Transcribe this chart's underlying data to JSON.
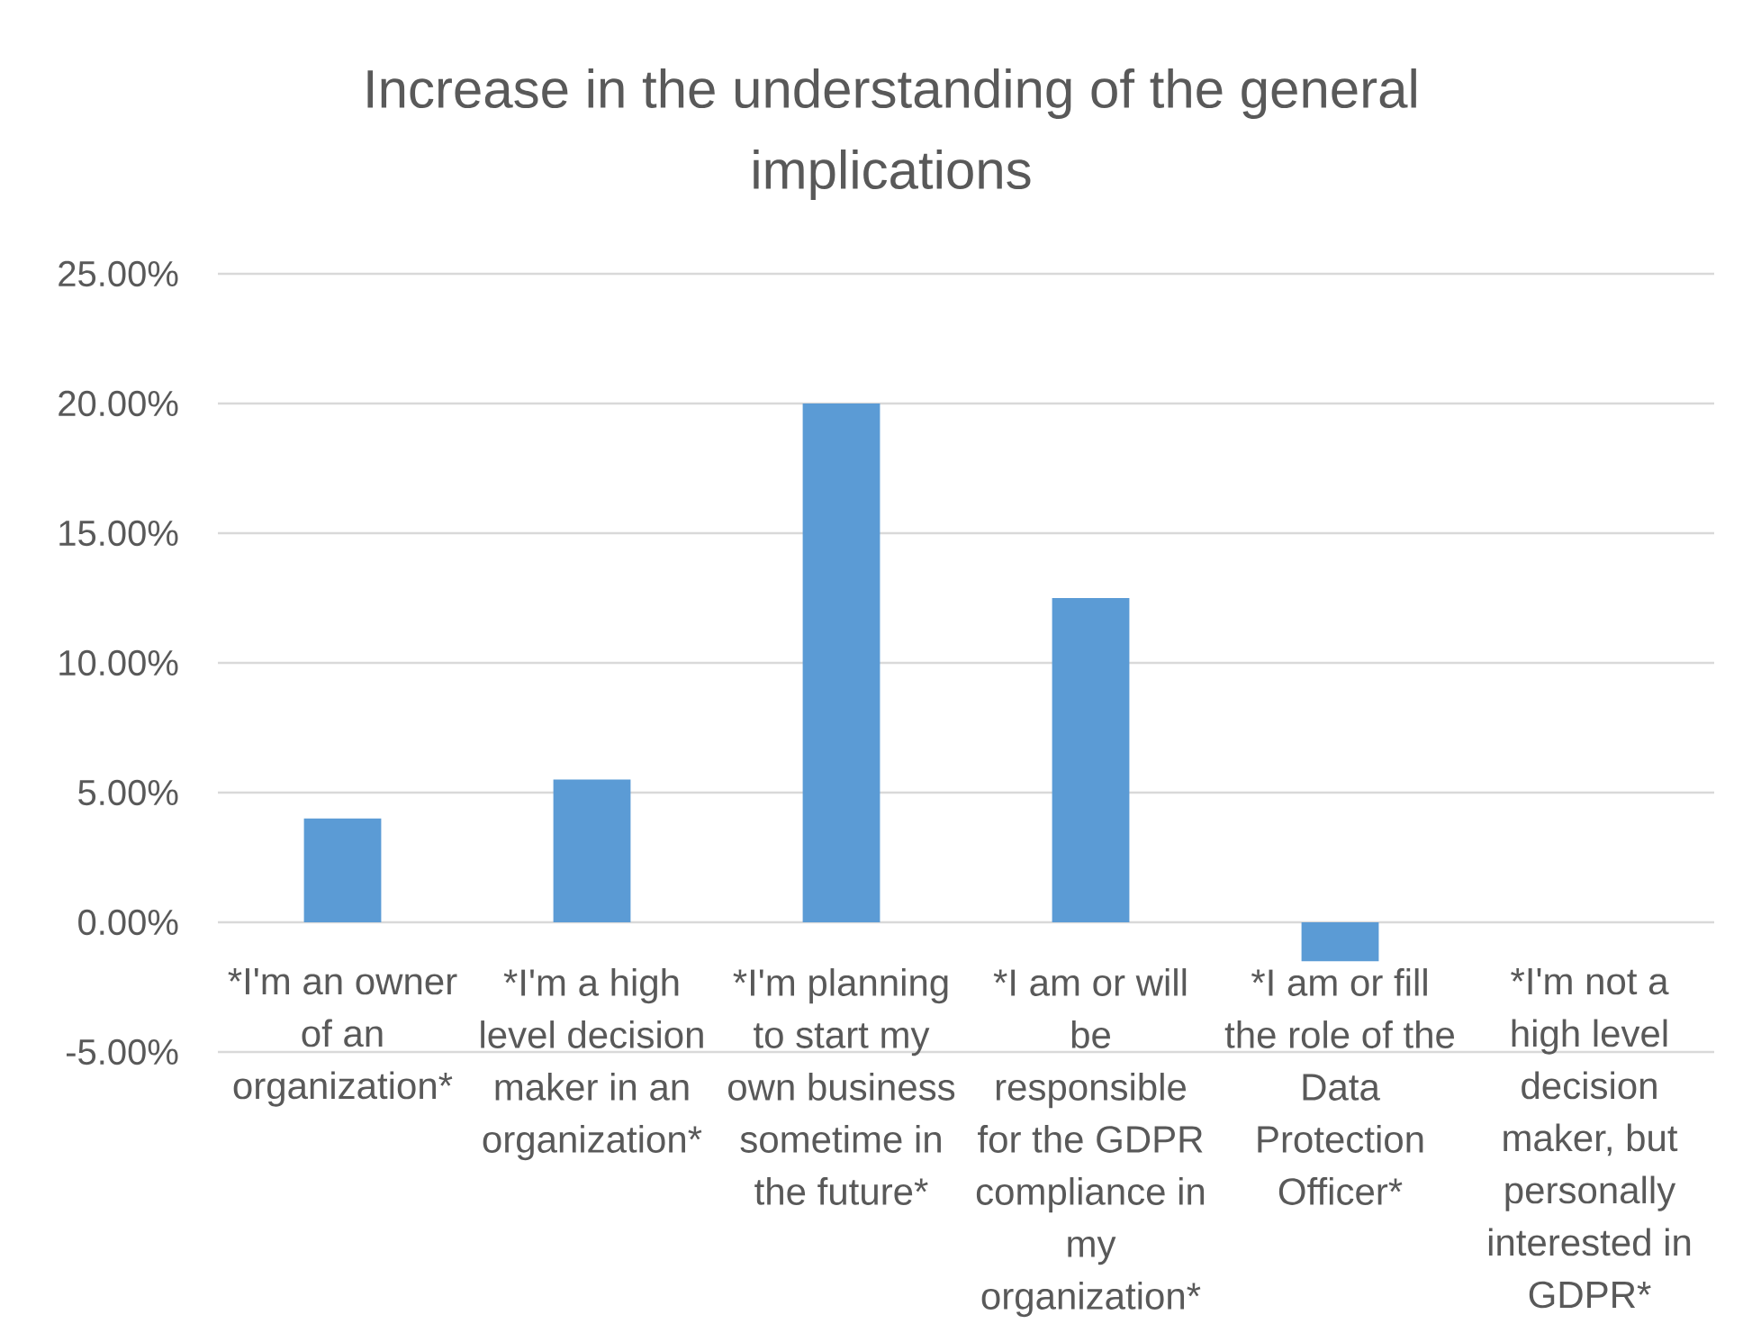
{
  "chart_data": {
    "type": "bar",
    "title": "Increase in the understanding of the general implications",
    "categories": [
      "*I'm an owner of an organization*",
      "*I'm a high level decision maker in an organization*",
      "*I'm planning to start my own business sometime in the future*",
      "*I am or will be responsible for the GDPR compliance in my organization*",
      "*I am or fill the role of the Data Protection Officer*",
      "*I'm not a high level decision maker, but personally interested in GDPR*"
    ],
    "values": [
      4.0,
      5.5,
      20,
      12.5,
      -1.5,
      0
    ],
    "color": "#5b9bd5",
    "ylim": [
      -5,
      25
    ],
    "yticks": [
      {
        "value": -5,
        "label": "-5.00%"
      },
      {
        "value": 0,
        "label": "0.00%"
      },
      {
        "value": 5,
        "label": "5.00%"
      },
      {
        "value": 10,
        "label": "10.00%"
      },
      {
        "value": 15,
        "label": "15.00%"
      },
      {
        "value": 20,
        "label": "20.00%"
      },
      {
        "value": 25,
        "label": "25.00%"
      }
    ],
    "grid": "y"
  }
}
